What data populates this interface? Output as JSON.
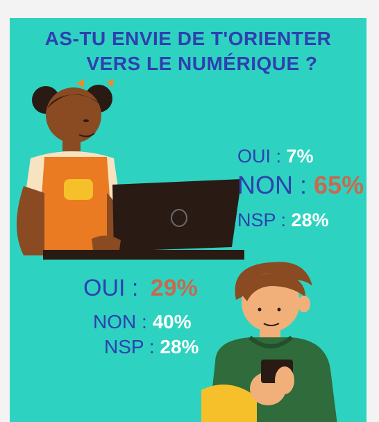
{
  "title": {
    "line1": "AS-TU ENVIE DE T'ORIENTER",
    "line2": "VERS LE  NUMÉRIQUE  ?"
  },
  "group1": {
    "oui_label": "OUI :",
    "oui_value": "7%",
    "non_label": "NON :",
    "non_value": "65%",
    "nsp_label": "NSP :",
    "nsp_value": "28%"
  },
  "group2": {
    "oui_label": "OUI :",
    "oui_value": "29%",
    "non_label": "NON :",
    "non_value": "40%",
    "nsp_label": "NSP :",
    "nsp_value": "28%"
  },
  "colors": {
    "background": "#2dd3c0",
    "title": "#2f3fb0",
    "highlight": "#c9694f",
    "white": "#ffffff"
  }
}
